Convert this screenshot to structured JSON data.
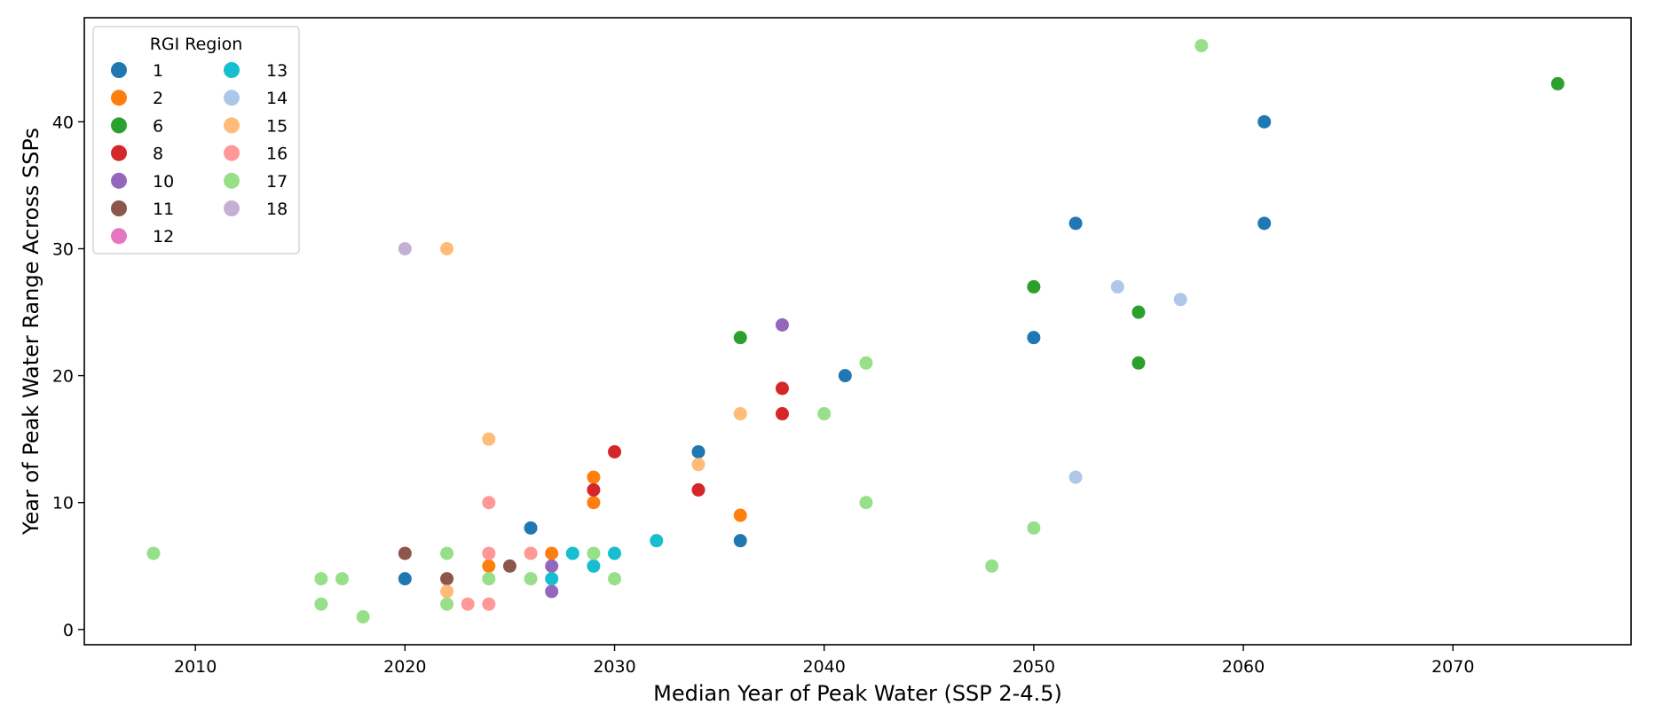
{
  "chart_data": {
    "type": "scatter",
    "title": "",
    "xlabel": "Median Year of Peak Water (SSP 2-4.5)",
    "ylabel": "Year of Peak Water Range Across SSPs",
    "xlim": [
      2004.7,
      2078.5
    ],
    "ylim": [
      -1.2,
      48.2
    ],
    "xticks": [
      2010,
      2020,
      2030,
      2040,
      2050,
      2060,
      2070
    ],
    "yticks": [
      0,
      10,
      20,
      30,
      40
    ],
    "grid": false,
    "legend": {
      "title": "RGI Region",
      "placement": "upper-left",
      "columns": 2
    },
    "series": [
      {
        "name": "1",
        "color": "#1f77b4",
        "points": [
          [
            2020,
            4
          ],
          [
            2026,
            8
          ],
          [
            2034,
            14
          ],
          [
            2036,
            7
          ],
          [
            2041,
            20
          ],
          [
            2050,
            23
          ],
          [
            2052,
            32
          ],
          [
            2061,
            40
          ],
          [
            2061,
            32
          ]
        ]
      },
      {
        "name": "2",
        "color": "#ff7f0e",
        "points": [
          [
            2024,
            5
          ],
          [
            2027,
            6
          ],
          [
            2029,
            12
          ],
          [
            2029,
            10
          ],
          [
            2036,
            9
          ]
        ]
      },
      {
        "name": "6",
        "color": "#2ca02c",
        "points": [
          [
            2036,
            23
          ],
          [
            2050,
            27
          ],
          [
            2055,
            25
          ],
          [
            2055,
            21
          ],
          [
            2075,
            43
          ]
        ]
      },
      {
        "name": "8",
        "color": "#d62728",
        "points": [
          [
            2029,
            11
          ],
          [
            2030,
            14
          ],
          [
            2034,
            11
          ],
          [
            2038,
            19
          ],
          [
            2038,
            17
          ]
        ]
      },
      {
        "name": "10",
        "color": "#9467bd",
        "points": [
          [
            2027,
            5
          ],
          [
            2027,
            3
          ],
          [
            2038,
            24
          ]
        ]
      },
      {
        "name": "11",
        "color": "#8c564b",
        "points": [
          [
            2020,
            6
          ],
          [
            2022,
            4
          ],
          [
            2025,
            5
          ]
        ]
      },
      {
        "name": "12",
        "color": "#e377c2",
        "points": []
      },
      {
        "name": "13",
        "color": "#17becf",
        "points": [
          [
            2027,
            4
          ],
          [
            2028,
            6
          ],
          [
            2029,
            5
          ],
          [
            2030,
            6
          ],
          [
            2032,
            7
          ]
        ]
      },
      {
        "name": "14",
        "color": "#aec7e8",
        "points": [
          [
            2052,
            12
          ],
          [
            2054,
            27
          ],
          [
            2057,
            26
          ]
        ]
      },
      {
        "name": "15",
        "color": "#ffbb78",
        "points": [
          [
            2022,
            30
          ],
          [
            2022,
            3
          ],
          [
            2024,
            15
          ],
          [
            2034,
            13
          ],
          [
            2036,
            17
          ]
        ]
      },
      {
        "name": "16",
        "color": "#ff9896",
        "points": [
          [
            2023,
            2
          ],
          [
            2024,
            10
          ],
          [
            2024,
            6
          ],
          [
            2024,
            2
          ],
          [
            2026,
            6
          ]
        ]
      },
      {
        "name": "17",
        "color": "#98df8a",
        "points": [
          [
            2008,
            6
          ],
          [
            2016,
            4
          ],
          [
            2016,
            2
          ],
          [
            2017,
            4
          ],
          [
            2018,
            1
          ],
          [
            2022,
            6
          ],
          [
            2022,
            2
          ],
          [
            2024,
            4
          ],
          [
            2026,
            4
          ],
          [
            2029,
            6
          ],
          [
            2030,
            4
          ],
          [
            2040,
            17
          ],
          [
            2042,
            21
          ],
          [
            2042,
            10
          ],
          [
            2048,
            5
          ],
          [
            2050,
            8
          ],
          [
            2058,
            46
          ]
        ]
      },
      {
        "name": "18",
        "color": "#c5b0d5",
        "points": [
          [
            2020,
            30
          ]
        ]
      }
    ]
  }
}
